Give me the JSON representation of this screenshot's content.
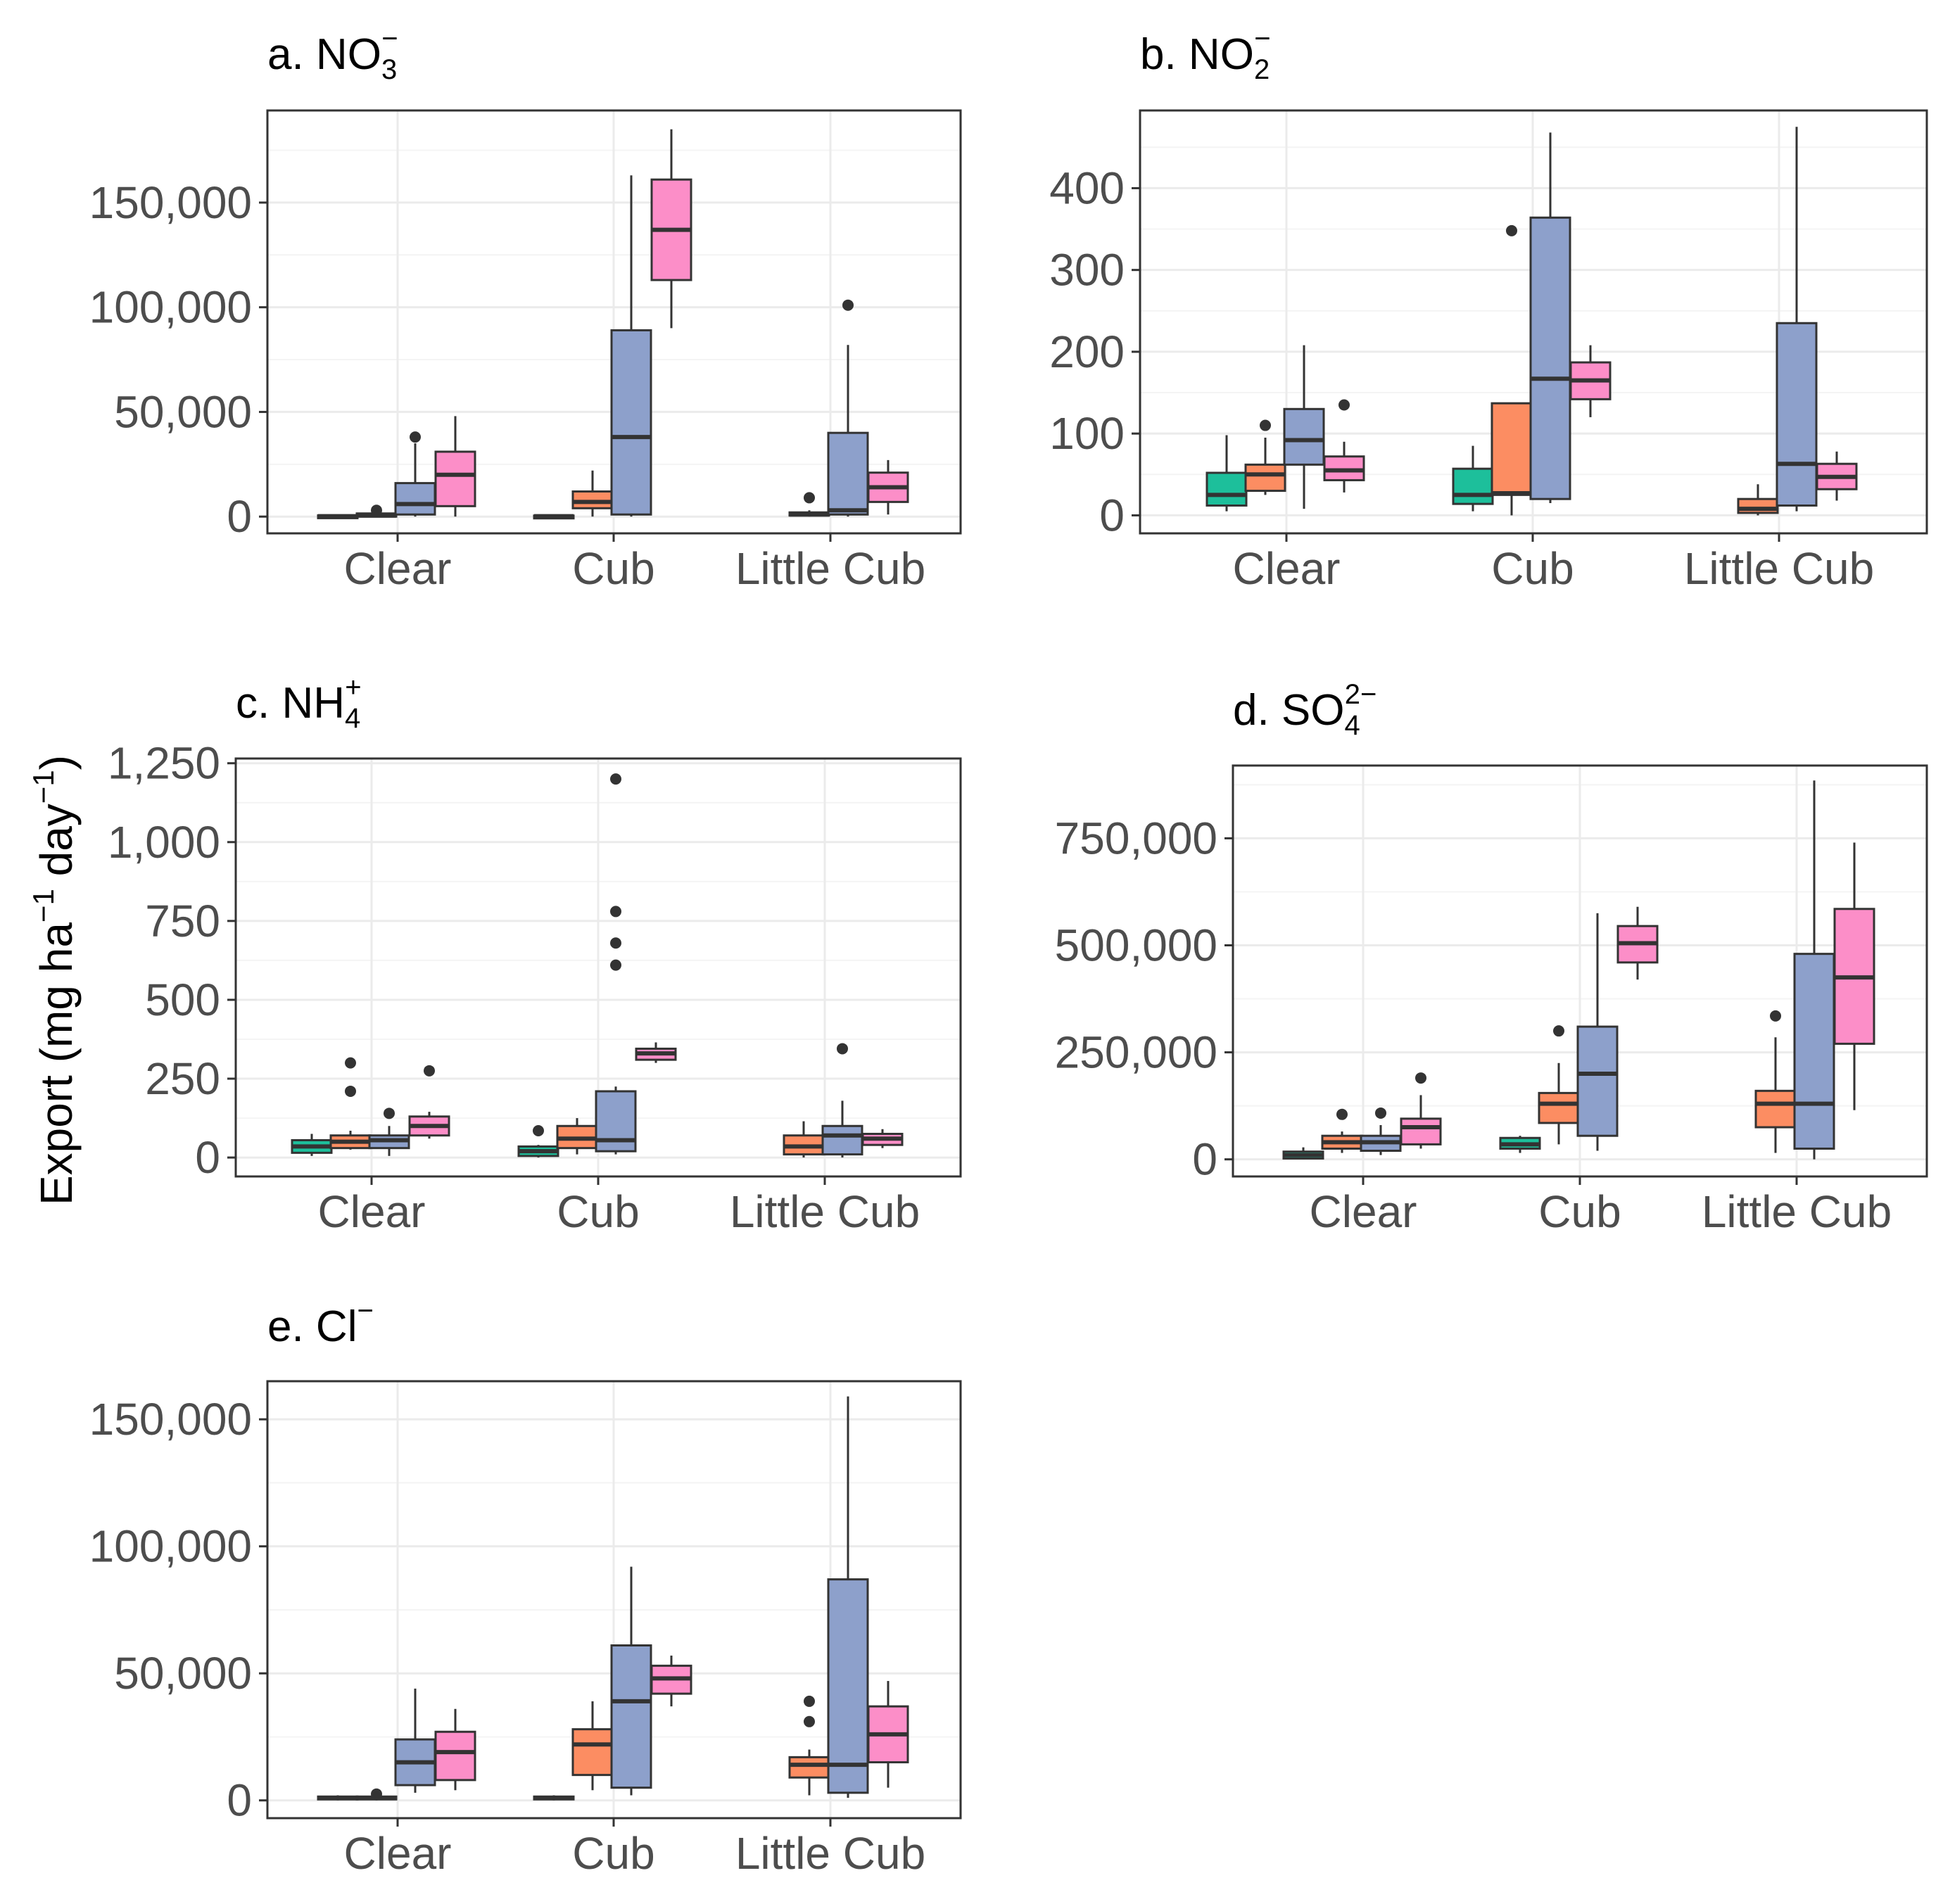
{
  "figure": {
    "y_axis_label": "Export (mg ha",
    "y_axis_label_sup1": "−1",
    "y_axis_label_mid": " day",
    "y_axis_label_sup2": "−1",
    "y_axis_label_end": ")"
  },
  "colors": {
    "group1": "#1dbf9b",
    "group2": "#fc8d62",
    "group3": "#8da0cb",
    "group4": "#fc8ec8",
    "box_stroke": "#333333",
    "grid_major": "#ebebeb",
    "grid_minor": "#f4f4f4",
    "panel_border": "#333333"
  },
  "chart_data": [
    {
      "type": "box",
      "panel": "a",
      "title_prefix": "a. NO",
      "title_sub": "3",
      "title_sup": "−",
      "categories": [
        "Clear",
        "Cub",
        "Little Cub"
      ],
      "ylim": [
        -8000,
        194000
      ],
      "ticks": [
        0,
        50000,
        100000,
        150000
      ],
      "tick_labels": [
        "0",
        "50,000",
        "100,000",
        "150,000"
      ],
      "groups": [
        [
          {
            "g": 1,
            "slot": 0,
            "q1": 0,
            "med": 200,
            "q3": 600,
            "lo": 0,
            "hi": 800,
            "out": []
          },
          {
            "g": 2,
            "slot": 1,
            "q1": 0,
            "med": 500,
            "q3": 1500,
            "lo": 0,
            "hi": 2000,
            "out": [
              3000
            ]
          },
          {
            "g": 3,
            "slot": 2,
            "q1": 1000,
            "med": 6000,
            "q3": 16000,
            "lo": 0,
            "hi": 35000,
            "out": [
              38000
            ]
          },
          {
            "g": 4,
            "slot": 3,
            "q1": 5000,
            "med": 20000,
            "q3": 31000,
            "lo": 0,
            "hi": 48000,
            "out": []
          }
        ],
        [
          {
            "g": 1,
            "slot": 0,
            "q1": 0,
            "med": 200,
            "q3": 500,
            "lo": 0,
            "hi": 700,
            "out": []
          },
          {
            "g": 2,
            "slot": 1,
            "q1": 4000,
            "med": 7000,
            "q3": 12000,
            "lo": 0,
            "hi": 22000,
            "out": []
          },
          {
            "g": 3,
            "slot": 2,
            "q1": 1000,
            "med": 38000,
            "q3": 89000,
            "lo": 0,
            "hi": 163000,
            "out": []
          },
          {
            "g": 4,
            "slot": 3,
            "q1": 113000,
            "med": 137000,
            "q3": 161000,
            "lo": 90000,
            "hi": 185000,
            "out": []
          }
        ],
        [
          {
            "g": 2,
            "slot": 1,
            "q1": 500,
            "med": 1000,
            "q3": 2000,
            "lo": 0,
            "hi": 3000,
            "out": [
              9000
            ]
          },
          {
            "g": 3,
            "slot": 2,
            "q1": 1000,
            "med": 3000,
            "q3": 40000,
            "lo": 0,
            "hi": 82000,
            "out": [
              101000
            ]
          },
          {
            "g": 4,
            "slot": 3,
            "q1": 7000,
            "med": 14000,
            "q3": 21000,
            "lo": 1000,
            "hi": 27000,
            "out": []
          }
        ]
      ]
    },
    {
      "type": "box",
      "panel": "b",
      "title_prefix": "b. NO",
      "title_sub": "2",
      "title_sup": "−",
      "categories": [
        "Clear",
        "Cub",
        "Little Cub"
      ],
      "ylim": [
        -22,
        495
      ],
      "ticks": [
        0,
        100,
        200,
        300,
        400
      ],
      "tick_labels": [
        "0",
        "100",
        "200",
        "300",
        "400"
      ],
      "groups": [
        [
          {
            "g": 1,
            "slot": 0,
            "q1": 12,
            "med": 25,
            "q3": 52,
            "lo": 5,
            "hi": 98,
            "out": []
          },
          {
            "g": 2,
            "slot": 1,
            "q1": 30,
            "med": 50,
            "q3": 62,
            "lo": 25,
            "hi": 95,
            "out": [
              110
            ]
          },
          {
            "g": 3,
            "slot": 2,
            "q1": 62,
            "med": 92,
            "q3": 130,
            "lo": 8,
            "hi": 208,
            "out": []
          },
          {
            "g": 4,
            "slot": 3,
            "q1": 43,
            "med": 55,
            "q3": 72,
            "lo": 28,
            "hi": 90,
            "out": [
              135
            ]
          }
        ],
        [
          {
            "g": 1,
            "slot": 0,
            "q1": 14,
            "med": 25,
            "q3": 57,
            "lo": 5,
            "hi": 85,
            "out": []
          },
          {
            "g": 2,
            "slot": 1,
            "q1": 25,
            "med": 27,
            "q3": 137,
            "lo": 0,
            "hi": 137,
            "out": [
              348
            ]
          },
          {
            "g": 3,
            "slot": 2,
            "q1": 20,
            "med": 167,
            "q3": 364,
            "lo": 15,
            "hi": 468,
            "out": []
          },
          {
            "g": 4,
            "slot": 3,
            "q1": 142,
            "med": 165,
            "q3": 187,
            "lo": 120,
            "hi": 208,
            "out": []
          }
        ],
        [
          {
            "g": 2,
            "slot": 1,
            "q1": 3,
            "med": 8,
            "q3": 20,
            "lo": 0,
            "hi": 38,
            "out": []
          },
          {
            "g": 3,
            "slot": 2,
            "q1": 12,
            "med": 63,
            "q3": 235,
            "lo": 5,
            "hi": 475,
            "out": []
          },
          {
            "g": 4,
            "slot": 3,
            "q1": 32,
            "med": 47,
            "q3": 63,
            "lo": 18,
            "hi": 78,
            "out": []
          }
        ]
      ]
    },
    {
      "type": "box",
      "panel": "c",
      "title_prefix": "c. NH",
      "title_sub": "4",
      "title_sup": "+",
      "categories": [
        "Clear",
        "Cub",
        "Little Cub"
      ],
      "ylim": [
        -60,
        1265
      ],
      "ticks": [
        0,
        250,
        500,
        750,
        1000,
        1250
      ],
      "tick_labels": [
        "0",
        "250",
        "500",
        "750",
        "1,000",
        "1,250"
      ],
      "groups": [
        [
          {
            "g": 1,
            "slot": 0,
            "q1": 15,
            "med": 35,
            "q3": 55,
            "lo": 5,
            "hi": 75,
            "out": []
          },
          {
            "g": 2,
            "slot": 1,
            "q1": 30,
            "med": 50,
            "q3": 70,
            "lo": 25,
            "hi": 85,
            "out": [
              210,
              300
            ]
          },
          {
            "g": 3,
            "slot": 2,
            "q1": 30,
            "med": 55,
            "q3": 70,
            "lo": 5,
            "hi": 100,
            "out": [
              140
            ]
          },
          {
            "g": 4,
            "slot": 3,
            "q1": 70,
            "med": 100,
            "q3": 130,
            "lo": 60,
            "hi": 145,
            "out": [
              275
            ]
          }
        ],
        [
          {
            "g": 1,
            "slot": 0,
            "q1": 5,
            "med": 20,
            "q3": 35,
            "lo": 0,
            "hi": 40,
            "out": [
              85
            ]
          },
          {
            "g": 2,
            "slot": 1,
            "q1": 30,
            "med": 60,
            "q3": 100,
            "lo": 10,
            "hi": 125,
            "out": []
          },
          {
            "g": 3,
            "slot": 2,
            "q1": 20,
            "med": 55,
            "q3": 210,
            "lo": 10,
            "hi": 225,
            "out": [
              610,
              680,
              780,
              1200
            ]
          },
          {
            "g": 4,
            "slot": 3,
            "q1": 310,
            "med": 330,
            "q3": 345,
            "lo": 300,
            "hi": 365,
            "out": []
          }
        ],
        [
          {
            "g": 2,
            "slot": 1,
            "q1": 10,
            "med": 35,
            "q3": 70,
            "lo": 0,
            "hi": 115,
            "out": []
          },
          {
            "g": 3,
            "slot": 2,
            "q1": 10,
            "med": 70,
            "q3": 100,
            "lo": 0,
            "hi": 180,
            "out": [
              345
            ]
          },
          {
            "g": 4,
            "slot": 3,
            "q1": 40,
            "med": 60,
            "q3": 75,
            "lo": 30,
            "hi": 90,
            "out": []
          }
        ]
      ]
    },
    {
      "type": "box",
      "panel": "d",
      "title_prefix": "d. SO",
      "title_sub": "4",
      "title_sup": "2−",
      "categories": [
        "Clear",
        "Cub",
        "Little Cub"
      ],
      "ylim": [
        -40000,
        920000
      ],
      "ticks": [
        0,
        250000,
        500000,
        750000
      ],
      "tick_labels": [
        "0",
        "250,000",
        "500,000",
        "750,000"
      ],
      "groups": [
        [
          {
            "g": 1,
            "slot": 0,
            "q1": 2000,
            "med": 10000,
            "q3": 18000,
            "lo": 0,
            "hi": 28000,
            "out": []
          },
          {
            "g": 2,
            "slot": 1,
            "q1": 25000,
            "med": 40000,
            "q3": 55000,
            "lo": 15000,
            "hi": 65000,
            "out": [
              105000
            ]
          },
          {
            "g": 3,
            "slot": 2,
            "q1": 20000,
            "med": 40000,
            "q3": 55000,
            "lo": 10000,
            "hi": 80000,
            "out": [
              108000
            ]
          },
          {
            "g": 4,
            "slot": 3,
            "q1": 35000,
            "med": 75000,
            "q3": 95000,
            "lo": 25000,
            "hi": 150000,
            "out": [
              190000
            ]
          }
        ],
        [
          {
            "g": 1,
            "slot": 0,
            "q1": 25000,
            "med": 35000,
            "q3": 50000,
            "lo": 15000,
            "hi": 55000,
            "out": []
          },
          {
            "g": 2,
            "slot": 1,
            "q1": 85000,
            "med": 130000,
            "q3": 155000,
            "lo": 35000,
            "hi": 225000,
            "out": [
              300000
            ]
          },
          {
            "g": 3,
            "slot": 2,
            "q1": 55000,
            "med": 200000,
            "q3": 310000,
            "lo": 20000,
            "hi": 575000,
            "out": []
          },
          {
            "g": 4,
            "slot": 3,
            "q1": 460000,
            "med": 505000,
            "q3": 545000,
            "lo": 420000,
            "hi": 590000,
            "out": []
          }
        ],
        [
          {
            "g": 2,
            "slot": 1,
            "q1": 75000,
            "med": 130000,
            "q3": 160000,
            "lo": 15000,
            "hi": 285000,
            "out": [
              335000
            ]
          },
          {
            "g": 3,
            "slot": 2,
            "q1": 25000,
            "med": 130000,
            "q3": 480000,
            "lo": 0,
            "hi": 885000,
            "out": []
          },
          {
            "g": 4,
            "slot": 3,
            "q1": 270000,
            "med": 425000,
            "q3": 585000,
            "lo": 115000,
            "hi": 740000,
            "out": []
          }
        ]
      ]
    },
    {
      "type": "box",
      "panel": "e",
      "title_prefix": "e. Cl",
      "title_sub": "",
      "title_sup": "−",
      "categories": [
        "Clear",
        "Cub",
        "Little Cub"
      ],
      "ylim": [
        -7000,
        165000
      ],
      "ticks": [
        0,
        50000,
        100000,
        150000
      ],
      "tick_labels": [
        "0",
        "50,000",
        "100,000",
        "150,000"
      ],
      "groups": [
        [
          {
            "g": 1,
            "slot": 0,
            "q1": 500,
            "med": 1000,
            "q3": 1500,
            "lo": 0,
            "hi": 2000,
            "out": []
          },
          {
            "g": 2,
            "slot": 1,
            "q1": 500,
            "med": 1000,
            "q3": 1500,
            "lo": 0,
            "hi": 2000,
            "out": [
              2500
            ]
          },
          {
            "g": 3,
            "slot": 2,
            "q1": 6000,
            "med": 15000,
            "q3": 24000,
            "lo": 3000,
            "hi": 44000,
            "out": []
          },
          {
            "g": 4,
            "slot": 3,
            "q1": 8000,
            "med": 19000,
            "q3": 27000,
            "lo": 4000,
            "hi": 36000,
            "out": []
          }
        ],
        [
          {
            "g": 1,
            "slot": 0,
            "q1": 500,
            "med": 1000,
            "q3": 1500,
            "lo": 0,
            "hi": 2000,
            "out": []
          },
          {
            "g": 2,
            "slot": 1,
            "q1": 10000,
            "med": 22000,
            "q3": 28000,
            "lo": 4000,
            "hi": 39000,
            "out": []
          },
          {
            "g": 3,
            "slot": 2,
            "q1": 5000,
            "med": 39000,
            "q3": 61000,
            "lo": 2000,
            "hi": 92000,
            "out": []
          },
          {
            "g": 4,
            "slot": 3,
            "q1": 42000,
            "med": 48000,
            "q3": 53000,
            "lo": 37000,
            "hi": 57000,
            "out": []
          }
        ],
        [
          {
            "g": 2,
            "slot": 1,
            "q1": 9000,
            "med": 14000,
            "q3": 17000,
            "lo": 2000,
            "hi": 20000,
            "out": [
              31000,
              39000
            ]
          },
          {
            "g": 3,
            "slot": 2,
            "q1": 3000,
            "med": 14000,
            "q3": 87000,
            "lo": 1000,
            "hi": 159000,
            "out": []
          },
          {
            "g": 4,
            "slot": 3,
            "q1": 15000,
            "med": 26000,
            "q3": 37000,
            "lo": 5000,
            "hi": 47000,
            "out": []
          }
        ]
      ]
    }
  ]
}
